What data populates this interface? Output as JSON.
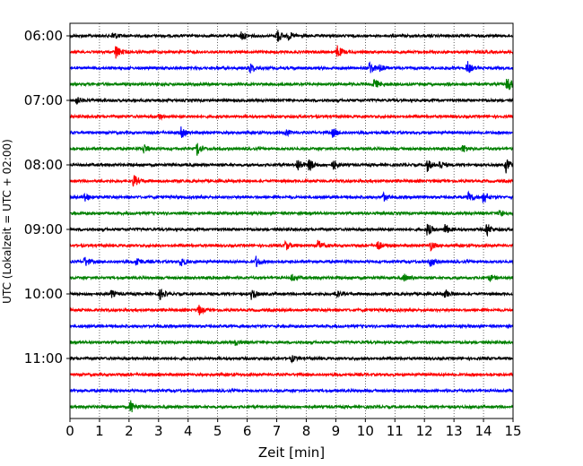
{
  "chart_data": {
    "type": "line",
    "chart_kind": "helicorder",
    "xlabel": "Zeit  [min]",
    "ylabel": "UTC (Lokalzeit = UTC + 02:00)",
    "xlim": [
      0,
      15
    ],
    "x_ticks": [
      "0",
      "1",
      "2",
      "3",
      "4",
      "5",
      "6",
      "7",
      "8",
      "9",
      "10",
      "11",
      "12",
      "13",
      "14",
      "15"
    ],
    "x_grid": "dotted vertical lines at each minute",
    "trace_interval_min": 15,
    "trace_colors": [
      "#000000",
      "#ff0000",
      "#0000ff",
      "#008000"
    ],
    "hour_labels": [
      "06:00",
      "07:00",
      "08:00",
      "09:00",
      "10:00",
      "11:00"
    ],
    "traces": [
      {
        "start": "06:00",
        "color": "#000000",
        "events": [
          {
            "t": 1.45,
            "a": 0.35
          },
          {
            "t": 5.8,
            "a": 0.4
          },
          {
            "t": 7.0,
            "a": 0.7
          },
          {
            "t": 7.4,
            "a": 0.3
          }
        ]
      },
      {
        "start": "06:15",
        "color": "#ff0000",
        "events": [
          {
            "t": 1.55,
            "a": 0.6
          },
          {
            "t": 9.05,
            "a": 0.55
          }
        ]
      },
      {
        "start": "06:30",
        "color": "#0000ff",
        "events": [
          {
            "t": 6.1,
            "a": 0.45
          },
          {
            "t": 10.15,
            "a": 0.6
          },
          {
            "t": 10.5,
            "a": 0.35
          },
          {
            "t": 13.45,
            "a": 0.55
          }
        ]
      },
      {
        "start": "06:45",
        "color": "#008000",
        "events": [
          {
            "t": 10.3,
            "a": 0.45
          },
          {
            "t": 14.8,
            "a": 0.75
          }
        ]
      },
      {
        "start": "07:00",
        "color": "#000000",
        "events": [
          {
            "t": 0.2,
            "a": 0.35
          }
        ]
      },
      {
        "start": "07:15",
        "color": "#ff0000",
        "events": [
          {
            "t": 3.0,
            "a": 0.25
          }
        ]
      },
      {
        "start": "07:30",
        "color": "#0000ff",
        "events": [
          {
            "t": 3.75,
            "a": 0.45
          },
          {
            "t": 7.3,
            "a": 0.3
          },
          {
            "t": 8.9,
            "a": 0.4
          }
        ]
      },
      {
        "start": "07:45",
        "color": "#008000",
        "events": [
          {
            "t": 2.5,
            "a": 0.4
          },
          {
            "t": 4.3,
            "a": 0.6
          },
          {
            "t": 13.3,
            "a": 0.35
          }
        ]
      },
      {
        "start": "08:00",
        "color": "#000000",
        "events": [
          {
            "t": 7.7,
            "a": 0.6
          },
          {
            "t": 8.1,
            "a": 0.55
          },
          {
            "t": 8.9,
            "a": 0.45
          },
          {
            "t": 12.1,
            "a": 0.5
          },
          {
            "t": 12.5,
            "a": 0.4
          },
          {
            "t": 14.75,
            "a": 0.65
          }
        ]
      },
      {
        "start": "08:15",
        "color": "#ff0000",
        "events": [
          {
            "t": 2.15,
            "a": 0.55
          }
        ]
      },
      {
        "start": "08:30",
        "color": "#0000ff",
        "events": [
          {
            "t": 0.5,
            "a": 0.4
          },
          {
            "t": 10.6,
            "a": 0.35
          },
          {
            "t": 13.5,
            "a": 0.5
          },
          {
            "t": 14.0,
            "a": 0.55
          }
        ]
      },
      {
        "start": "08:45",
        "color": "#008000",
        "events": [
          {
            "t": 14.55,
            "a": 0.35
          }
        ]
      },
      {
        "start": "09:00",
        "color": "#000000",
        "events": [
          {
            "t": 12.1,
            "a": 0.55
          },
          {
            "t": 12.7,
            "a": 0.45
          },
          {
            "t": 14.1,
            "a": 0.6
          }
        ]
      },
      {
        "start": "09:15",
        "color": "#ff0000",
        "events": [
          {
            "t": 7.3,
            "a": 0.4
          },
          {
            "t": 8.4,
            "a": 0.45
          },
          {
            "t": 10.4,
            "a": 0.45
          },
          {
            "t": 12.2,
            "a": 0.4
          }
        ]
      },
      {
        "start": "09:30",
        "color": "#0000ff",
        "events": [
          {
            "t": 0.5,
            "a": 0.45
          },
          {
            "t": 2.25,
            "a": 0.45
          },
          {
            "t": 3.75,
            "a": 0.45
          },
          {
            "t": 6.3,
            "a": 0.45
          },
          {
            "t": 12.2,
            "a": 0.4
          }
        ]
      },
      {
        "start": "09:45",
        "color": "#008000",
        "events": [
          {
            "t": 7.5,
            "a": 0.3
          },
          {
            "t": 11.3,
            "a": 0.3
          },
          {
            "t": 14.2,
            "a": 0.3
          }
        ]
      },
      {
        "start": "10:00",
        "color": "#000000",
        "events": [
          {
            "t": 1.4,
            "a": 0.3
          },
          {
            "t": 3.05,
            "a": 0.45
          },
          {
            "t": 6.15,
            "a": 0.5
          },
          {
            "t": 9.0,
            "a": 0.3
          },
          {
            "t": 12.7,
            "a": 0.35
          }
        ]
      },
      {
        "start": "10:15",
        "color": "#ff0000",
        "events": [
          {
            "t": 4.35,
            "a": 0.45
          }
        ]
      },
      {
        "start": "10:30",
        "color": "#0000ff",
        "events": []
      },
      {
        "start": "10:45",
        "color": "#008000",
        "events": [
          {
            "t": 5.6,
            "a": 0.25
          }
        ]
      },
      {
        "start": "11:00",
        "color": "#000000",
        "events": [
          {
            "t": 7.5,
            "a": 0.25
          }
        ]
      },
      {
        "start": "11:15",
        "color": "#ff0000",
        "events": []
      },
      {
        "start": "11:30",
        "color": "#0000ff",
        "events": []
      },
      {
        "start": "11:45",
        "color": "#008000",
        "events": [
          {
            "t": 2.05,
            "a": 0.55
          }
        ]
      }
    ]
  }
}
